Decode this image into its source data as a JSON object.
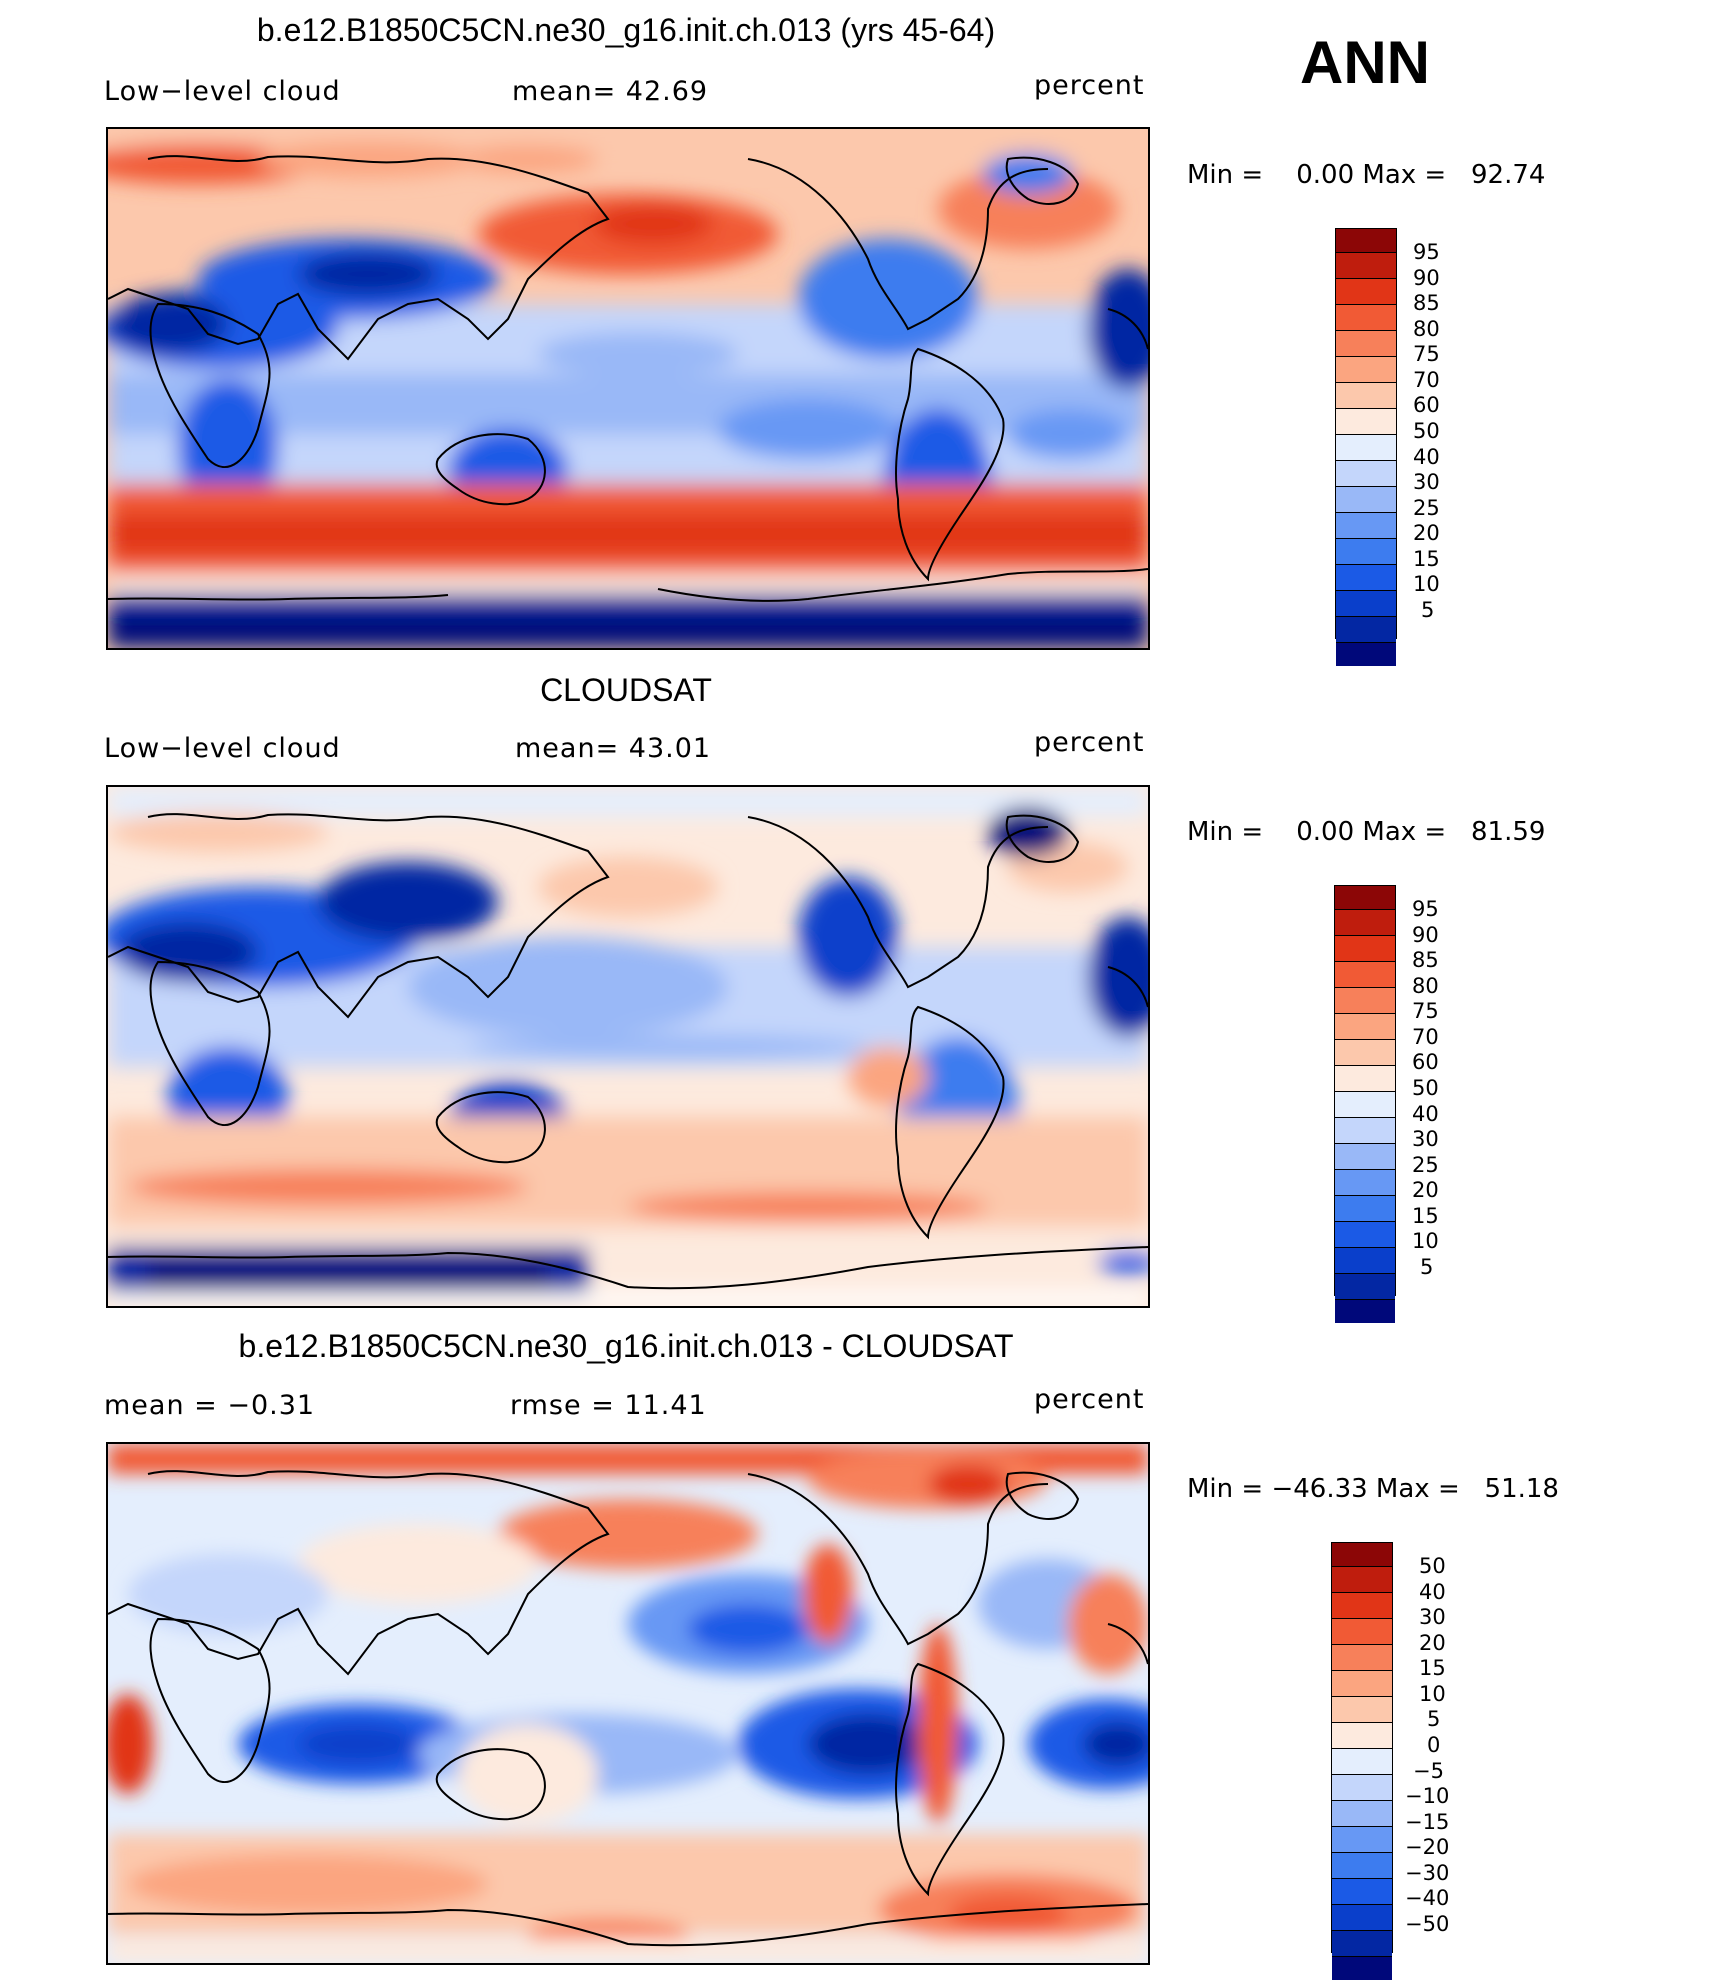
{
  "season_label": "ANN",
  "panels": [
    {
      "title": "b.e12.B1850C5CN.ne30_g16.init.ch.013 (yrs 45-64)",
      "left_label": "Low−level cloud",
      "center_label": "mean=   42.69",
      "right_label": "percent",
      "minmax": "Min =    0.00 Max =   92.74",
      "colorbar": {
        "colors": [
          "#00087a",
          "#0327a3",
          "#0a3fcb",
          "#1b5ae6",
          "#3d7cef",
          "#6798f4",
          "#99b8f7",
          "#c4d6fb",
          "#e4eefd",
          "#fdeade",
          "#fcc8ac",
          "#fba580",
          "#f7805a",
          "#f15a35",
          "#e13517",
          "#bf1d0d",
          "#8c0606"
        ],
        "labels": [
          "95",
          "90",
          "85",
          "80",
          "75",
          "70",
          "60",
          "50",
          "40",
          "30",
          "25",
          "20",
          "15",
          "10",
          "5"
        ]
      }
    },
    {
      "title": "CLOUDSAT",
      "left_label": "Low−level cloud",
      "center_label": "mean=   43.01",
      "right_label": "percent",
      "minmax": "Min =    0.00 Max =   81.59",
      "colorbar": {
        "colors": [
          "#00087a",
          "#0327a3",
          "#0a3fcb",
          "#1b5ae6",
          "#3d7cef",
          "#6798f4",
          "#99b8f7",
          "#c4d6fb",
          "#e4eefd",
          "#fdeade",
          "#fcc8ac",
          "#fba580",
          "#f7805a",
          "#f15a35",
          "#e13517",
          "#bf1d0d",
          "#8c0606"
        ],
        "labels": [
          "95",
          "90",
          "85",
          "80",
          "75",
          "70",
          "60",
          "50",
          "40",
          "30",
          "25",
          "20",
          "15",
          "10",
          "5"
        ]
      }
    },
    {
      "title": "b.e12.B1850C5CN.ne30_g16.init.ch.013 - CLOUDSAT",
      "left_label": "mean =   −0.31",
      "center_label": "rmse =   11.41",
      "right_label": "percent",
      "minmax": "Min = −46.33 Max =   51.18",
      "colorbar": {
        "colors": [
          "#00087a",
          "#0327a3",
          "#0a3fcb",
          "#1b5ae6",
          "#3d7cef",
          "#6798f4",
          "#99b8f7",
          "#c4d6fb",
          "#e4eefd",
          "#fdeade",
          "#fcc8ac",
          "#fba580",
          "#f7805a",
          "#f15a35",
          "#e13517",
          "#bf1d0d",
          "#8c0606"
        ],
        "labels": [
          "50",
          "40",
          "30",
          "20",
          "15",
          "10",
          "5",
          "0",
          "−5",
          "−10",
          "−15",
          "−20",
          "−30",
          "−40",
          "−50"
        ]
      }
    }
  ]
}
